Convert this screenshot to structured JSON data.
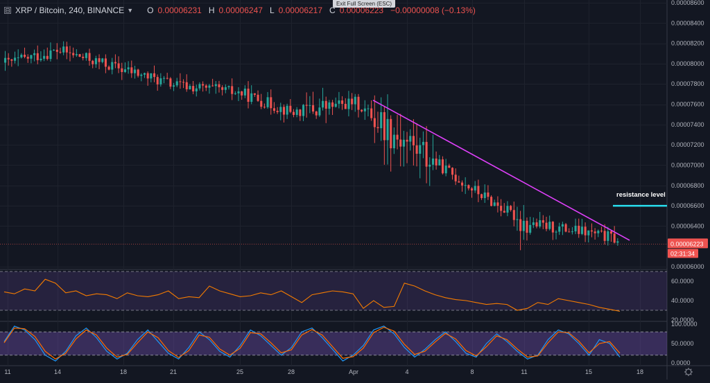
{
  "legend": {
    "symbol": "XRP / Bitcoin, 240, BINANCE",
    "o_label": "O",
    "o_value": "0.00006231",
    "h_label": "H",
    "h_value": "0.00006247",
    "l_label": "L",
    "l_value": "0.00006217",
    "c_label": "C",
    "c_value": "0.00006223",
    "change": "−0.00000008 (−0.13%)"
  },
  "exit_full_screen": "Exit Full Screen (ESC)",
  "colors": {
    "background": "#131722",
    "up": "#26a69a",
    "down": "#ef5350",
    "trendline": "#e040fb",
    "resistance": "#29e0f0",
    "rsi": "#f57c00",
    "stoch_k": "#2196f3",
    "stoch_d": "#ff6d00",
    "band": "#7e57c2"
  },
  "annotations": {
    "resistance_label": "resistance level"
  },
  "price_axis": {
    "ticks": [
      "0.00008600",
      "0.00008400",
      "0.00008200",
      "0.00008000",
      "0.00007800",
      "0.00007600",
      "0.00007400",
      "0.00007200",
      "0.00007000",
      "0.00006800",
      "0.00006600",
      "0.00006400",
      "0.00006000"
    ],
    "current_price": "0.00006223",
    "countdown": "02:31:34"
  },
  "rsi_axis": {
    "ticks": [
      "60.0000",
      "40.0000",
      "20.0000"
    ]
  },
  "stoch_axis": {
    "ticks": [
      "100.0000",
      "50.0000",
      "0.0000"
    ]
  },
  "time_axis": {
    "labels": [
      "11",
      "14",
      "18",
      "21",
      "25",
      "28",
      "Apr",
      "4",
      "8",
      "11",
      "15",
      "18"
    ]
  },
  "chart_data": [
    {
      "type": "candlestick",
      "title": "XRP / Bitcoin, 240, BINANCE",
      "x": [
        "11",
        "14",
        "18",
        "21",
        "25",
        "28",
        "Apr",
        "4",
        "8",
        "11",
        "15",
        "18"
      ],
      "ylim": [
        6e-05,
        8.6e-05
      ],
      "approx_close_path": [
        {
          "x": "11",
          "y": 8.01e-05
        },
        {
          "x": "14",
          "y": 8.13e-05
        },
        {
          "x": "18",
          "y": 7.94e-05
        },
        {
          "x": "21",
          "y": 7.79e-05
        },
        {
          "x": "25",
          "y": 7.71e-05
        },
        {
          "x": "28",
          "y": 7.52e-05
        },
        {
          "x": "Apr",
          "y": 7.62e-05
        },
        {
          "x": "4",
          "y": 7.22e-05
        },
        {
          "x": "8",
          "y": 6.76e-05
        },
        {
          "x": "11",
          "y": 6.43e-05
        },
        {
          "x": "15",
          "y": 6.33e-05
        },
        {
          "x": "18",
          "y": 6.22e-05
        }
      ],
      "trendline": {
        "start": {
          "x": "Apr",
          "y": 7.64e-05
        },
        "end": {
          "x": "18",
          "y": 6.26e-05
        }
      },
      "resistance_level": 6.6e-05,
      "last": {
        "open": 6.231e-05,
        "high": 6.247e-05,
        "low": 6.217e-05,
        "close": 6.223e-05
      }
    },
    {
      "type": "line",
      "series": [
        {
          "values": [
            49,
            47,
            52,
            50,
            62,
            58,
            48,
            50,
            45,
            47,
            46,
            42,
            48,
            45,
            44,
            46,
            50,
            42,
            44,
            43,
            55,
            50,
            47,
            44,
            45,
            48,
            46,
            50,
            44,
            38,
            46,
            48,
            50,
            49,
            47,
            32,
            40,
            33,
            34,
            58,
            55,
            50,
            46,
            43,
            41,
            40,
            38,
            36,
            37,
            36,
            30,
            32,
            38,
            36,
            42,
            40,
            38,
            36,
            33,
            31,
            29
          ]
        }
      ],
      "ylim": [
        20,
        70
      ],
      "levels": [
        70,
        30
      ]
    },
    {
      "type": "line",
      "series": [
        {
          "values": [
            55,
            95,
            85,
            60,
            20,
            5,
            30,
            70,
            90,
            65,
            30,
            10,
            25,
            60,
            85,
            55,
            25,
            10,
            40,
            80,
            60,
            30,
            15,
            45,
            85,
            70,
            45,
            20,
            40,
            80,
            90,
            65,
            35,
            5,
            20,
            45,
            85,
            95,
            75,
            40,
            15,
            35,
            60,
            80,
            55,
            25,
            15,
            50,
            75,
            55,
            30,
            10,
            20,
            60,
            85,
            75,
            50,
            20,
            60,
            50,
            15
          ]
        },
        {
          "values": [
            52,
            90,
            88,
            68,
            30,
            10,
            25,
            62,
            85,
            72,
            38,
            15,
            22,
            52,
            80,
            65,
            32,
            14,
            32,
            72,
            66,
            36,
            20,
            38,
            78,
            75,
            52,
            26,
            34,
            72,
            86,
            72,
            42,
            12,
            16,
            38,
            78,
            92,
            82,
            48,
            22,
            30,
            54,
            76,
            62,
            32,
            18,
            42,
            70,
            60,
            36,
            15,
            18,
            52,
            80,
            78,
            56,
            26,
            50,
            55,
            25
          ]
        }
      ],
      "ylim": [
        0,
        100
      ],
      "levels": [
        80,
        20
      ]
    }
  ]
}
